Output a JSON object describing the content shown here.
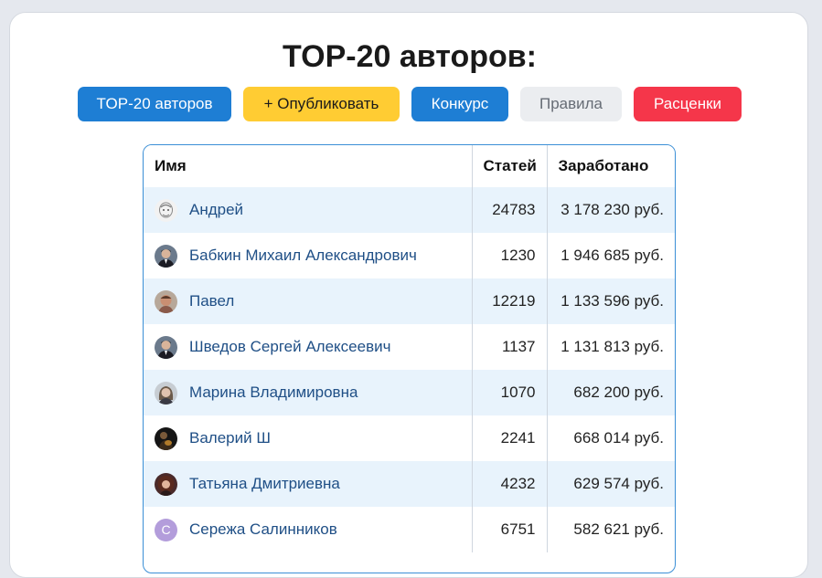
{
  "page": {
    "title": "TOP-20 авторов:"
  },
  "nav": {
    "buttons": [
      {
        "label": "TOP-20 авторов",
        "bg": "#1e7ed4",
        "fg": "#ffffff"
      },
      {
        "label": "+ Опубликовать",
        "bg": "#ffcc33",
        "fg": "#1a1a1a"
      },
      {
        "label": "Конкурс",
        "bg": "#1e7ed4",
        "fg": "#ffffff"
      },
      {
        "label": "Правила",
        "bg": "#ebedf0",
        "fg": "#666c75"
      },
      {
        "label": "Расценки",
        "bg": "#f5364a",
        "fg": "#ffffff"
      }
    ]
  },
  "table": {
    "headers": {
      "name": "Имя",
      "articles": "Статей",
      "earned": "Заработано"
    },
    "rows": [
      {
        "name": "Андрей",
        "articles": "24783",
        "earned": "3 178 230 руб.",
        "avatar": "sketch-face-icon"
      },
      {
        "name": "Бабкин Михаил Александрович",
        "articles": "1230",
        "earned": "1 946 685 руб.",
        "avatar": "photo-man-suit-icon"
      },
      {
        "name": "Павел",
        "articles": "12219",
        "earned": "1 133 596 руб.",
        "avatar": "photo-man-icon"
      },
      {
        "name": "Шведов Сергей Алексеевич",
        "articles": "1137",
        "earned": "1 131 813 руб.",
        "avatar": "photo-man-suit-icon"
      },
      {
        "name": "Марина Владимировна",
        "articles": "1070",
        "earned": "682 200 руб.",
        "avatar": "photo-woman-icon"
      },
      {
        "name": "Валерий Ш",
        "articles": "2241",
        "earned": "668 014 руб.",
        "avatar": "photo-guitar-icon"
      },
      {
        "name": "Татьяна Дмитриевна",
        "articles": "4232",
        "earned": "629 574 руб.",
        "avatar": "photo-woman-curly-icon"
      },
      {
        "name": "Сережа Салинников",
        "articles": "6751",
        "earned": "582 621 руб.",
        "avatar": "letter-avatar",
        "avatar_letter": "С"
      }
    ]
  }
}
